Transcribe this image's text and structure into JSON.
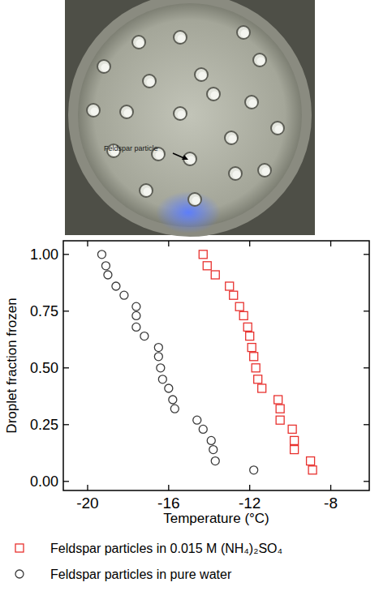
{
  "chart_data": {
    "type": "scatter",
    "x_label": "Temperature (°C)",
    "y_label": "Droplet fraction frozen",
    "xlim": [
      -21.2,
      -6.1
    ],
    "ylim": [
      -0.04,
      1.06
    ],
    "xticks": [
      -20,
      -16,
      -12,
      -8
    ],
    "yticks": [
      {
        "value": 0,
        "label": "0.00"
      },
      {
        "value": 0.25,
        "label": "0.25"
      },
      {
        "value": 0.5,
        "label": "0.50"
      },
      {
        "value": 0.75,
        "label": "0.75"
      },
      {
        "value": 1,
        "label": "1.00"
      }
    ],
    "legend": "bottom",
    "series": [
      {
        "name": "Feldspar particles in 0.015 M (NH₄)₂SO₄",
        "color": "#e8322f",
        "marker": "square",
        "x": [
          -8.9,
          -9.0,
          -9.8,
          -9.8,
          -9.9,
          -10.5,
          -10.5,
          -10.6,
          -11.4,
          -11.6,
          -11.7,
          -11.8,
          -11.9,
          -12.0,
          -12.1,
          -12.3,
          -12.5,
          -12.8,
          -13.0,
          -13.7,
          -14.1,
          -14.3
        ],
        "values": [
          0.05,
          0.09,
          0.14,
          0.18,
          0.23,
          0.27,
          0.32,
          0.36,
          0.41,
          0.45,
          0.5,
          0.55,
          0.59,
          0.64,
          0.68,
          0.73,
          0.77,
          0.82,
          0.86,
          0.91,
          0.95,
          1.0
        ]
      },
      {
        "name": "Feldspar particles in pure water",
        "color": "#3a3a3a",
        "marker": "circle",
        "x": [
          -11.8,
          -13.7,
          -13.8,
          -13.9,
          -14.3,
          -14.6,
          -15.7,
          -15.8,
          -16.0,
          -16.3,
          -16.4,
          -16.5,
          -16.5,
          -17.2,
          -17.6,
          -17.6,
          -17.6,
          -18.2,
          -18.6,
          -19.0,
          -19.1,
          -19.3
        ],
        "values": [
          0.05,
          0.09,
          0.14,
          0.18,
          0.23,
          0.27,
          0.32,
          0.36,
          0.41,
          0.45,
          0.5,
          0.55,
          0.59,
          0.64,
          0.68,
          0.73,
          0.77,
          0.82,
          0.86,
          0.91,
          0.95,
          1.0
        ]
      }
    ]
  },
  "photo": {
    "annotation": "Feldspar particle"
  }
}
